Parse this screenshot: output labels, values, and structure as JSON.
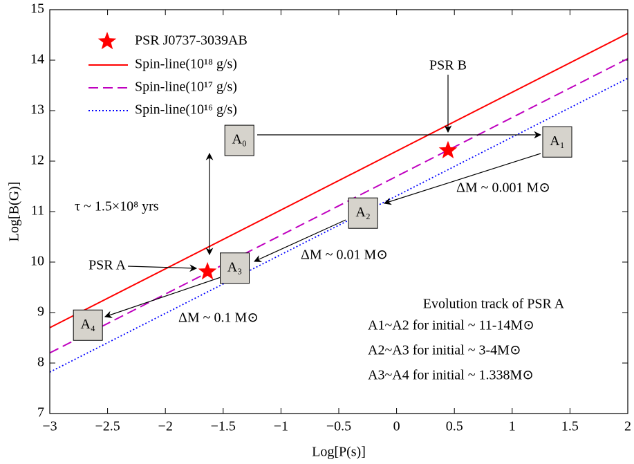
{
  "chart_data": {
    "type": "line",
    "xlabel": "Log[P(s)]",
    "ylabel": "Log[B(G)]",
    "xlim": [
      -3,
      2
    ],
    "ylim": [
      7,
      15
    ],
    "xticks": [
      {
        "value": -3,
        "label": "−3"
      },
      {
        "value": -2.5,
        "label": "−2.5"
      },
      {
        "value": -2,
        "label": "−2"
      },
      {
        "value": -1.5,
        "label": "−1.5"
      },
      {
        "value": -1,
        "label": "−1"
      },
      {
        "value": -0.5,
        "label": "−0.5"
      },
      0,
      0.5,
      1,
      1.5,
      2
    ],
    "yticks": [
      7,
      8,
      9,
      10,
      11,
      12,
      13,
      14,
      15
    ],
    "grid": false,
    "series": [
      {
        "name": "Spin-line(10¹⁸ g/s)",
        "color": "#ff0000",
        "dash": "solid",
        "x": [
          -3,
          2
        ],
        "values": [
          8.7,
          14.53
        ]
      },
      {
        "name": "Spin-line(10¹⁷ g/s)",
        "color": "#bf00bf",
        "dash": "dashed",
        "x": [
          -3,
          2
        ],
        "values": [
          8.2,
          14.03
        ]
      },
      {
        "name": "Spin-line(10¹⁶ g/s)",
        "color": "#0000ff",
        "dash": "dotted",
        "x": [
          -3,
          2
        ],
        "values": [
          7.82,
          13.64
        ]
      }
    ],
    "points": {
      "name": "PSR J0737-3039AB",
      "color": "#ff0000",
      "x": [
        -1.636,
        0.445
      ],
      "values": [
        9.81,
        12.21
      ],
      "labels": [
        "PSR A",
        "PSR B"
      ]
    },
    "boxes": {
      "labels": [
        "A₀",
        "A₁",
        "A₂",
        "A₃",
        "A₄"
      ],
      "x": [
        -1.36,
        1.39,
        -0.29,
        -1.4,
        -2.67
      ],
      "values": [
        12.41,
        12.38,
        10.97,
        9.88,
        8.75
      ]
    },
    "annotations": [
      "τ ~ 1.5×10⁸ yrs",
      "ΔM ~ 0.001 M⊙",
      "ΔM ~ 0.01 M⊙",
      "ΔM ~ 0.1 M⊙"
    ],
    "notes": {
      "title": "Evolution track of PSR A",
      "lines": [
        "A1~A2 for initial ~ 11-14M⊙",
        "A2~A3 for initial ~ 3-4M⊙",
        "A3~A4 for initial ~ 1.338M⊙"
      ]
    }
  }
}
